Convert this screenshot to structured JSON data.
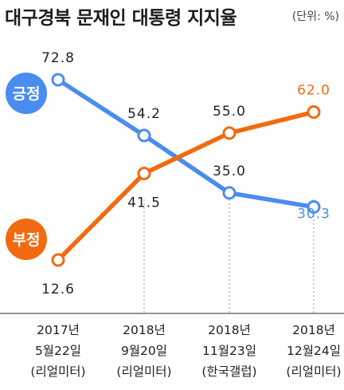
{
  "chart_data": {
    "type": "line",
    "title": "대구경북 문재인 대통령 지지율",
    "unit": "(단위: %)",
    "categories": [
      [
        "2017년",
        "5월22일",
        "(리얼미터)"
      ],
      [
        "2018년",
        "9월20일",
        "(리얼미터)"
      ],
      [
        "2018년",
        "11월23일",
        "(한국갤럽)"
      ],
      [
        "2018년",
        "12월24일",
        "(리얼미터)"
      ]
    ],
    "series": [
      {
        "name": "긍정",
        "color": "#4a8cf0",
        "values": [
          72.8,
          54.2,
          35.0,
          30.3
        ],
        "labels": [
          "72.8",
          "54.2",
          "35.0",
          "30.3"
        ]
      },
      {
        "name": "부정",
        "color": "#f26a10",
        "values": [
          12.6,
          41.5,
          55.0,
          62.0
        ],
        "labels": [
          "12.6",
          "41.5",
          "55.0",
          "62.0"
        ]
      }
    ],
    "ylim": [
      5,
      80
    ],
    "grid": false,
    "legend": "left, inline badges"
  }
}
